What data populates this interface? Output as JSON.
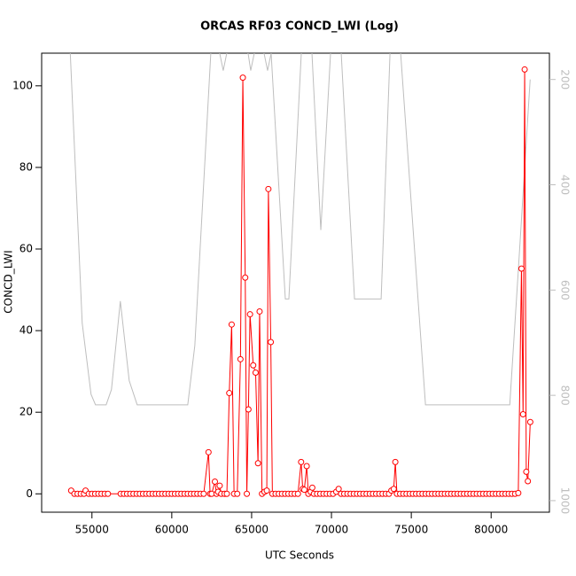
{
  "chart_data": {
    "type": "line",
    "title": "ORCAS RF03 CONCD_LWI (Log)",
    "x_label": "UTC Seconds",
    "y_label": "CONCD_LWI",
    "xlim": [
      51850,
      83650
    ],
    "ylim": [
      -4.5,
      108
    ],
    "y2lim": [
      1022,
      150
    ],
    "xticks": [
      55000,
      60000,
      65000,
      70000,
      75000,
      80000
    ],
    "yticks": [
      0,
      20,
      40,
      60,
      80,
      100
    ],
    "y2ticks": [
      200,
      400,
      600,
      800,
      1000
    ],
    "series": [
      {
        "color": "#ff0000",
        "marker": "circle",
        "x": [
          53700,
          53900,
          54100,
          54300,
          54500,
          54600,
          54800,
          55000,
          55200,
          55400,
          55600,
          55800,
          56000,
          56800,
          57000,
          57200,
          57400,
          57600,
          57800,
          58000,
          58200,
          58400,
          58600,
          58800,
          59000,
          59200,
          59400,
          59600,
          59800,
          60000,
          60200,
          60400,
          60600,
          60800,
          61000,
          61200,
          61400,
          61600,
          61800,
          62000,
          62300,
          62400,
          62500,
          62700,
          62800,
          62900,
          63000,
          63100,
          63300,
          63450,
          63600,
          63750,
          63900,
          64100,
          64300,
          64450,
          64600,
          64700,
          64800,
          64900,
          65100,
          65250,
          65400,
          65500,
          65650,
          65800,
          65950,
          66050,
          66200,
          66300,
          66500,
          66700,
          66900,
          67100,
          67300,
          67500,
          67700,
          67900,
          68100,
          68200,
          68300,
          68450,
          68550,
          68700,
          68800,
          68900,
          69100,
          69300,
          69500,
          69700,
          69900,
          70100,
          70300,
          70450,
          70600,
          70800,
          71000,
          71200,
          71400,
          71600,
          71800,
          72000,
          72200,
          72400,
          72600,
          72800,
          73000,
          73200,
          73400,
          73600,
          73750,
          73900,
          74000,
          74100,
          74300,
          74500,
          74700,
          74900,
          75100,
          75300,
          75500,
          75700,
          75900,
          76100,
          76300,
          76500,
          76700,
          76900,
          77100,
          77300,
          77500,
          77700,
          77900,
          78100,
          78300,
          78500,
          78700,
          78900,
          79100,
          79300,
          79500,
          79700,
          79900,
          80100,
          80300,
          80500,
          80700,
          80900,
          81100,
          81300,
          81500,
          81700,
          81900,
          82000,
          82100,
          82200,
          82300,
          82450
        ],
        "values": [
          0.8,
          0,
          0,
          0,
          0,
          0.8,
          0,
          0,
          0,
          0,
          0,
          0,
          0,
          0,
          0,
          0,
          0,
          0,
          0,
          0,
          0,
          0,
          0,
          0,
          0,
          0,
          0,
          0,
          0,
          0,
          0,
          0,
          0,
          0,
          0,
          0,
          0,
          0,
          0,
          0,
          10.2,
          0,
          0,
          3,
          0,
          0.5,
          2,
          0,
          0,
          0,
          24.7,
          41.5,
          0,
          0,
          33,
          102,
          53,
          0,
          20.7,
          44,
          31.5,
          29.7,
          7.5,
          44.7,
          0,
          0.5,
          0.8,
          74.7,
          37.2,
          0,
          0,
          0,
          0,
          0,
          0,
          0,
          0,
          0,
          7.8,
          1.2,
          1,
          6.8,
          0,
          0.5,
          1.5,
          0,
          0,
          0,
          0,
          0,
          0,
          0,
          0.5,
          1.2,
          0,
          0,
          0,
          0,
          0,
          0,
          0,
          0,
          0,
          0,
          0,
          0,
          0,
          0,
          0,
          0,
          0.8,
          1.2,
          7.8,
          0,
          0,
          0,
          0,
          0,
          0,
          0,
          0,
          0,
          0,
          0,
          0,
          0,
          0,
          0,
          0,
          0,
          0,
          0,
          0,
          0,
          0,
          0,
          0,
          0,
          0,
          0,
          0,
          0,
          0,
          0,
          0,
          0,
          0,
          0,
          0,
          0,
          0,
          0.2,
          55.2,
          19.5,
          104,
          5.4,
          3.1,
          17.6
        ]
      },
      {
        "color": "#bebebe",
        "axis": "y2",
        "x": [
          53600,
          54390,
          54944,
          55222,
          55890,
          56222,
          56778,
          57333,
          57833,
          61000,
          61444,
          62444,
          62700,
          63000,
          63222,
          63444,
          63700,
          64778,
          64944,
          65167,
          65500,
          65778,
          66000,
          66222,
          67111,
          67333,
          68111,
          68400,
          68778,
          69333,
          69944,
          70200,
          70611,
          71444,
          73111,
          73667,
          74000,
          74333,
          75889,
          81167,
          81722,
          82444
        ],
        "values": [
          120,
          663,
          798,
          818,
          818,
          789,
          621,
          772,
          818,
          818,
          705,
          150,
          120,
          150,
          183,
          150,
          120,
          150,
          183,
          150,
          120,
          150,
          183,
          150,
          617,
          617,
          150,
          120,
          150,
          486,
          150,
          120,
          150,
          617,
          617,
          150,
          120,
          150,
          818,
          818,
          553,
          200
        ]
      }
    ]
  }
}
